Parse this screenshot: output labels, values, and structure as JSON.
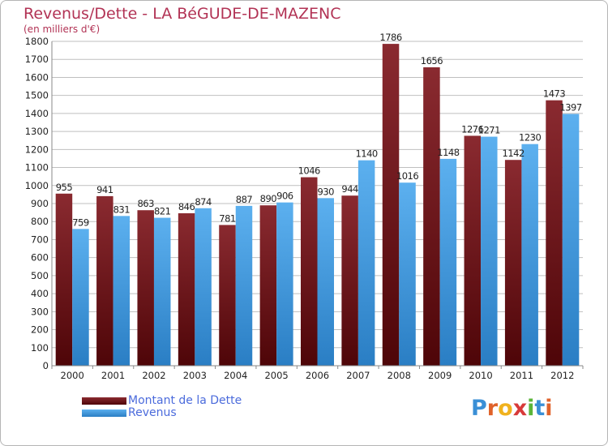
{
  "header": {
    "title": "Revenus/Dette - LA BéGUDE-DE-MAZENC",
    "subtitle": "(en milliers d'€)"
  },
  "legend": {
    "debt_label": "Montant de la Dette",
    "revenue_label": "Revenus"
  },
  "logo": {
    "text": "Proxiti",
    "letters": [
      "P",
      "r",
      "o",
      "x",
      "i",
      "t",
      "i"
    ],
    "letter_colors": [
      "#3a8fd6",
      "#e0622a",
      "#f0b21e",
      "#d83a3a",
      "#5bb53a",
      "#3a8fd6",
      "#e0622a"
    ]
  },
  "colors": {
    "debt": "#7a1f24",
    "debt_dark": "#5a0a0e",
    "revenue": "#4fa3e8",
    "revenue_dark": "#2a7ec4",
    "grid": "#bfbfbf",
    "axis_text": "#222222",
    "title": "#b23355"
  },
  "chart_data": {
    "type": "bar",
    "title": "Revenus/Dette - LA BéGUDE-DE-MAZENC",
    "subtitle": "(en milliers d'€)",
    "categories": [
      "2000",
      "2001",
      "2002",
      "2003",
      "2004",
      "2005",
      "2006",
      "2007",
      "2008",
      "2009",
      "2010",
      "2011",
      "2012"
    ],
    "series": [
      {
        "name": "Montant de la Dette",
        "values": [
          955,
          941,
          863,
          846,
          781,
          890,
          1046,
          944,
          1786,
          1656,
          1276,
          1142,
          1473
        ]
      },
      {
        "name": "Revenus",
        "values": [
          759,
          831,
          821,
          874,
          887,
          906,
          930,
          1140,
          1016,
          1148,
          1271,
          1230,
          1397
        ]
      }
    ],
    "ylim": [
      0,
      1800
    ],
    "yticks": [
      0,
      100,
      200,
      300,
      400,
      500,
      600,
      700,
      800,
      900,
      1000,
      1100,
      1200,
      1300,
      1400,
      1500,
      1600,
      1700,
      1800
    ],
    "grid": true,
    "legend_position": "bottom-left"
  }
}
